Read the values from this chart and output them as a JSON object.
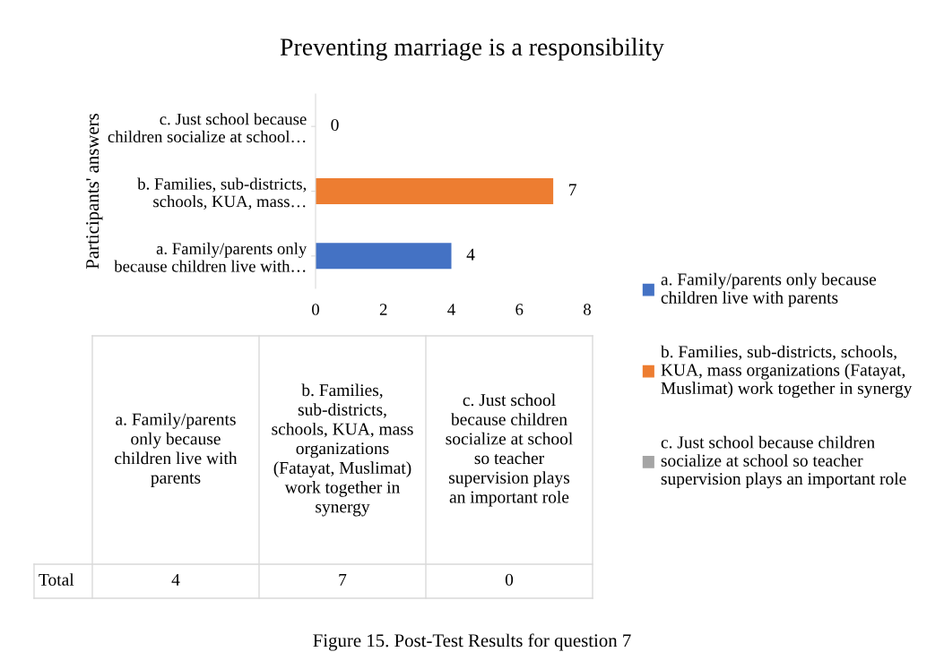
{
  "chart_data": {
    "type": "bar",
    "orientation": "horizontal",
    "title": "Preventing marriage is a responsibility",
    "ylabel": "Participants' answers",
    "categories": [
      "c. Just school because children socialize at school…",
      "b. Families, sub-districts, schools, KUA, mass…",
      "a. Family/parents only because children live with…"
    ],
    "series": [
      {
        "name": "a. Family/parents only because children live with parents",
        "color": "#4472c4",
        "values": [
          null,
          null,
          4
        ],
        "value_labels": [
          null,
          null,
          "4"
        ]
      },
      {
        "name": "b. Families, sub-districts, schools, KUA, mass organizations (Fatayat, Muslimat) work together in synergy",
        "color": "#ed7d31",
        "values": [
          null,
          7,
          null
        ],
        "value_labels": [
          null,
          "7",
          null
        ]
      },
      {
        "name": "c. Just school because children socialize at school so teacher supervision plays an important role",
        "color": "#a5a5a5",
        "values": [
          0,
          null,
          null
        ],
        "value_labels": [
          "0",
          null,
          null
        ]
      }
    ],
    "xlim": [
      0,
      8
    ],
    "xticks": [
      0,
      2,
      4,
      6,
      8
    ],
    "legend": "right",
    "grid": false,
    "annotations": [
      "Total",
      "Figure 15. Post-Test Results for question 7"
    ]
  }
}
